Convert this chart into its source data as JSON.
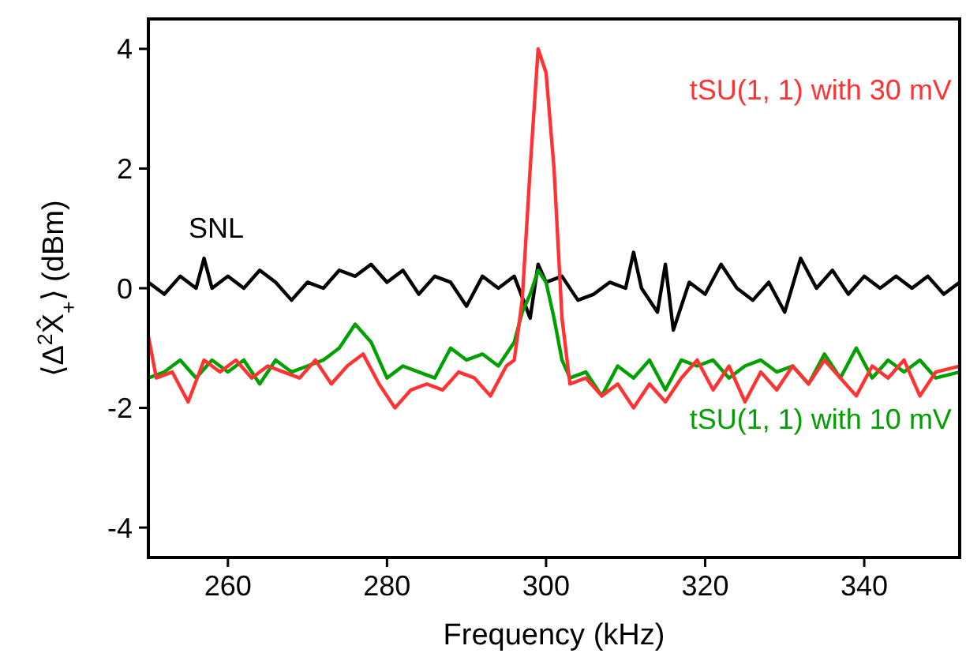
{
  "chart_data": {
    "type": "line",
    "xlabel": "Frequency (kHz)",
    "ylabel": "⟨Δ$^{2}$X̂$_{+}$⟩ (dBm)",
    "xlim": [
      250,
      352
    ],
    "ylim": [
      -4.5,
      4.5
    ],
    "xticks": [
      260,
      280,
      300,
      320,
      340
    ],
    "yticks": [
      -4,
      -2,
      0,
      2,
      4
    ],
    "grid": false,
    "marker": "none",
    "line_style": "solid",
    "series": [
      {
        "name": "SNL",
        "color": "#000000",
        "x": [
          250,
          252,
          254,
          256,
          257,
          258,
          260,
          262,
          264,
          266,
          268,
          270,
          272,
          274,
          276,
          278,
          280,
          282,
          284,
          286,
          288,
          290,
          292,
          294,
          296,
          298,
          299,
          300,
          302,
          304,
          306,
          308,
          310,
          311,
          312,
          314,
          315,
          316,
          318,
          320,
          322,
          324,
          326,
          328,
          330,
          332,
          334,
          336,
          338,
          340,
          342,
          344,
          346,
          348,
          350,
          352
        ],
        "values": [
          0.1,
          -0.1,
          0.2,
          0.0,
          0.5,
          0.0,
          0.2,
          0.0,
          0.3,
          0.1,
          -0.2,
          0.1,
          0.0,
          0.3,
          0.2,
          0.4,
          0.1,
          0.3,
          -0.1,
          0.2,
          0.1,
          -0.3,
          0.2,
          0.0,
          0.2,
          -0.5,
          0.4,
          0.1,
          0.2,
          -0.2,
          -0.1,
          0.1,
          0.0,
          0.6,
          0.0,
          -0.4,
          0.4,
          -0.7,
          0.1,
          -0.1,
          0.4,
          0.0,
          -0.2,
          0.1,
          -0.4,
          0.5,
          0.0,
          0.3,
          -0.1,
          0.2,
          0.0,
          0.2,
          0.0,
          0.2,
          -0.1,
          0.1
        ]
      },
      {
        "name": "tSU(1, 1) with 10 mV",
        "color": "#00a000",
        "x": [
          250,
          252,
          254,
          256,
          258,
          260,
          262,
          264,
          266,
          268,
          270,
          272,
          274,
          276,
          278,
          280,
          282,
          284,
          286,
          288,
          290,
          292,
          294,
          296,
          297,
          298,
          299,
          300,
          301,
          302,
          303,
          305,
          307,
          309,
          311,
          313,
          315,
          317,
          319,
          321,
          323,
          325,
          327,
          329,
          331,
          333,
          335,
          337,
          339,
          341,
          343,
          345,
          347,
          349,
          352
        ],
        "values": [
          -1.5,
          -1.4,
          -1.2,
          -1.5,
          -1.2,
          -1.4,
          -1.2,
          -1.6,
          -1.2,
          -1.4,
          -1.3,
          -1.2,
          -1.0,
          -0.6,
          -0.9,
          -1.5,
          -1.3,
          -1.4,
          -1.5,
          -1.0,
          -1.2,
          -1.1,
          -1.3,
          -0.9,
          -0.4,
          -0.1,
          0.3,
          0.1,
          -0.5,
          -1.2,
          -1.5,
          -1.4,
          -1.8,
          -1.3,
          -1.5,
          -1.2,
          -1.7,
          -1.2,
          -1.3,
          -1.2,
          -1.5,
          -1.3,
          -1.2,
          -1.4,
          -1.3,
          -1.6,
          -1.1,
          -1.5,
          -1.0,
          -1.5,
          -1.2,
          -1.4,
          -1.2,
          -1.5,
          -1.4
        ]
      },
      {
        "name": "tSU(1, 1) with 30 mV",
        "color": "#ff3333",
        "x": [
          250,
          251,
          253,
          255,
          257,
          259,
          261,
          263,
          265,
          267,
          269,
          271,
          273,
          275,
          277,
          279,
          281,
          283,
          285,
          287,
          289,
          291,
          293,
          295,
          296,
          297,
          298,
          299,
          300,
          301,
          302,
          303,
          305,
          307,
          309,
          311,
          313,
          315,
          317,
          319,
          321,
          323,
          325,
          327,
          329,
          331,
          333,
          335,
          337,
          339,
          341,
          343,
          345,
          347,
          349,
          352
        ],
        "values": [
          -0.8,
          -1.5,
          -1.4,
          -1.9,
          -1.2,
          -1.4,
          -1.2,
          -1.5,
          -1.3,
          -1.4,
          -1.5,
          -1.2,
          -1.6,
          -1.3,
          -1.1,
          -1.6,
          -2.0,
          -1.7,
          -1.6,
          -1.7,
          -1.4,
          -1.5,
          -1.8,
          -1.3,
          -1.2,
          -0.2,
          2.0,
          4.0,
          3.6,
          2.0,
          -0.5,
          -1.6,
          -1.5,
          -1.8,
          -1.6,
          -2.0,
          -1.6,
          -1.9,
          -1.5,
          -1.2,
          -1.7,
          -1.3,
          -1.9,
          -1.4,
          -1.7,
          -1.3,
          -1.6,
          -1.2,
          -1.5,
          -1.8,
          -1.3,
          -1.5,
          -1.2,
          -1.8,
          -1.4,
          -1.3
        ]
      }
    ]
  }
}
